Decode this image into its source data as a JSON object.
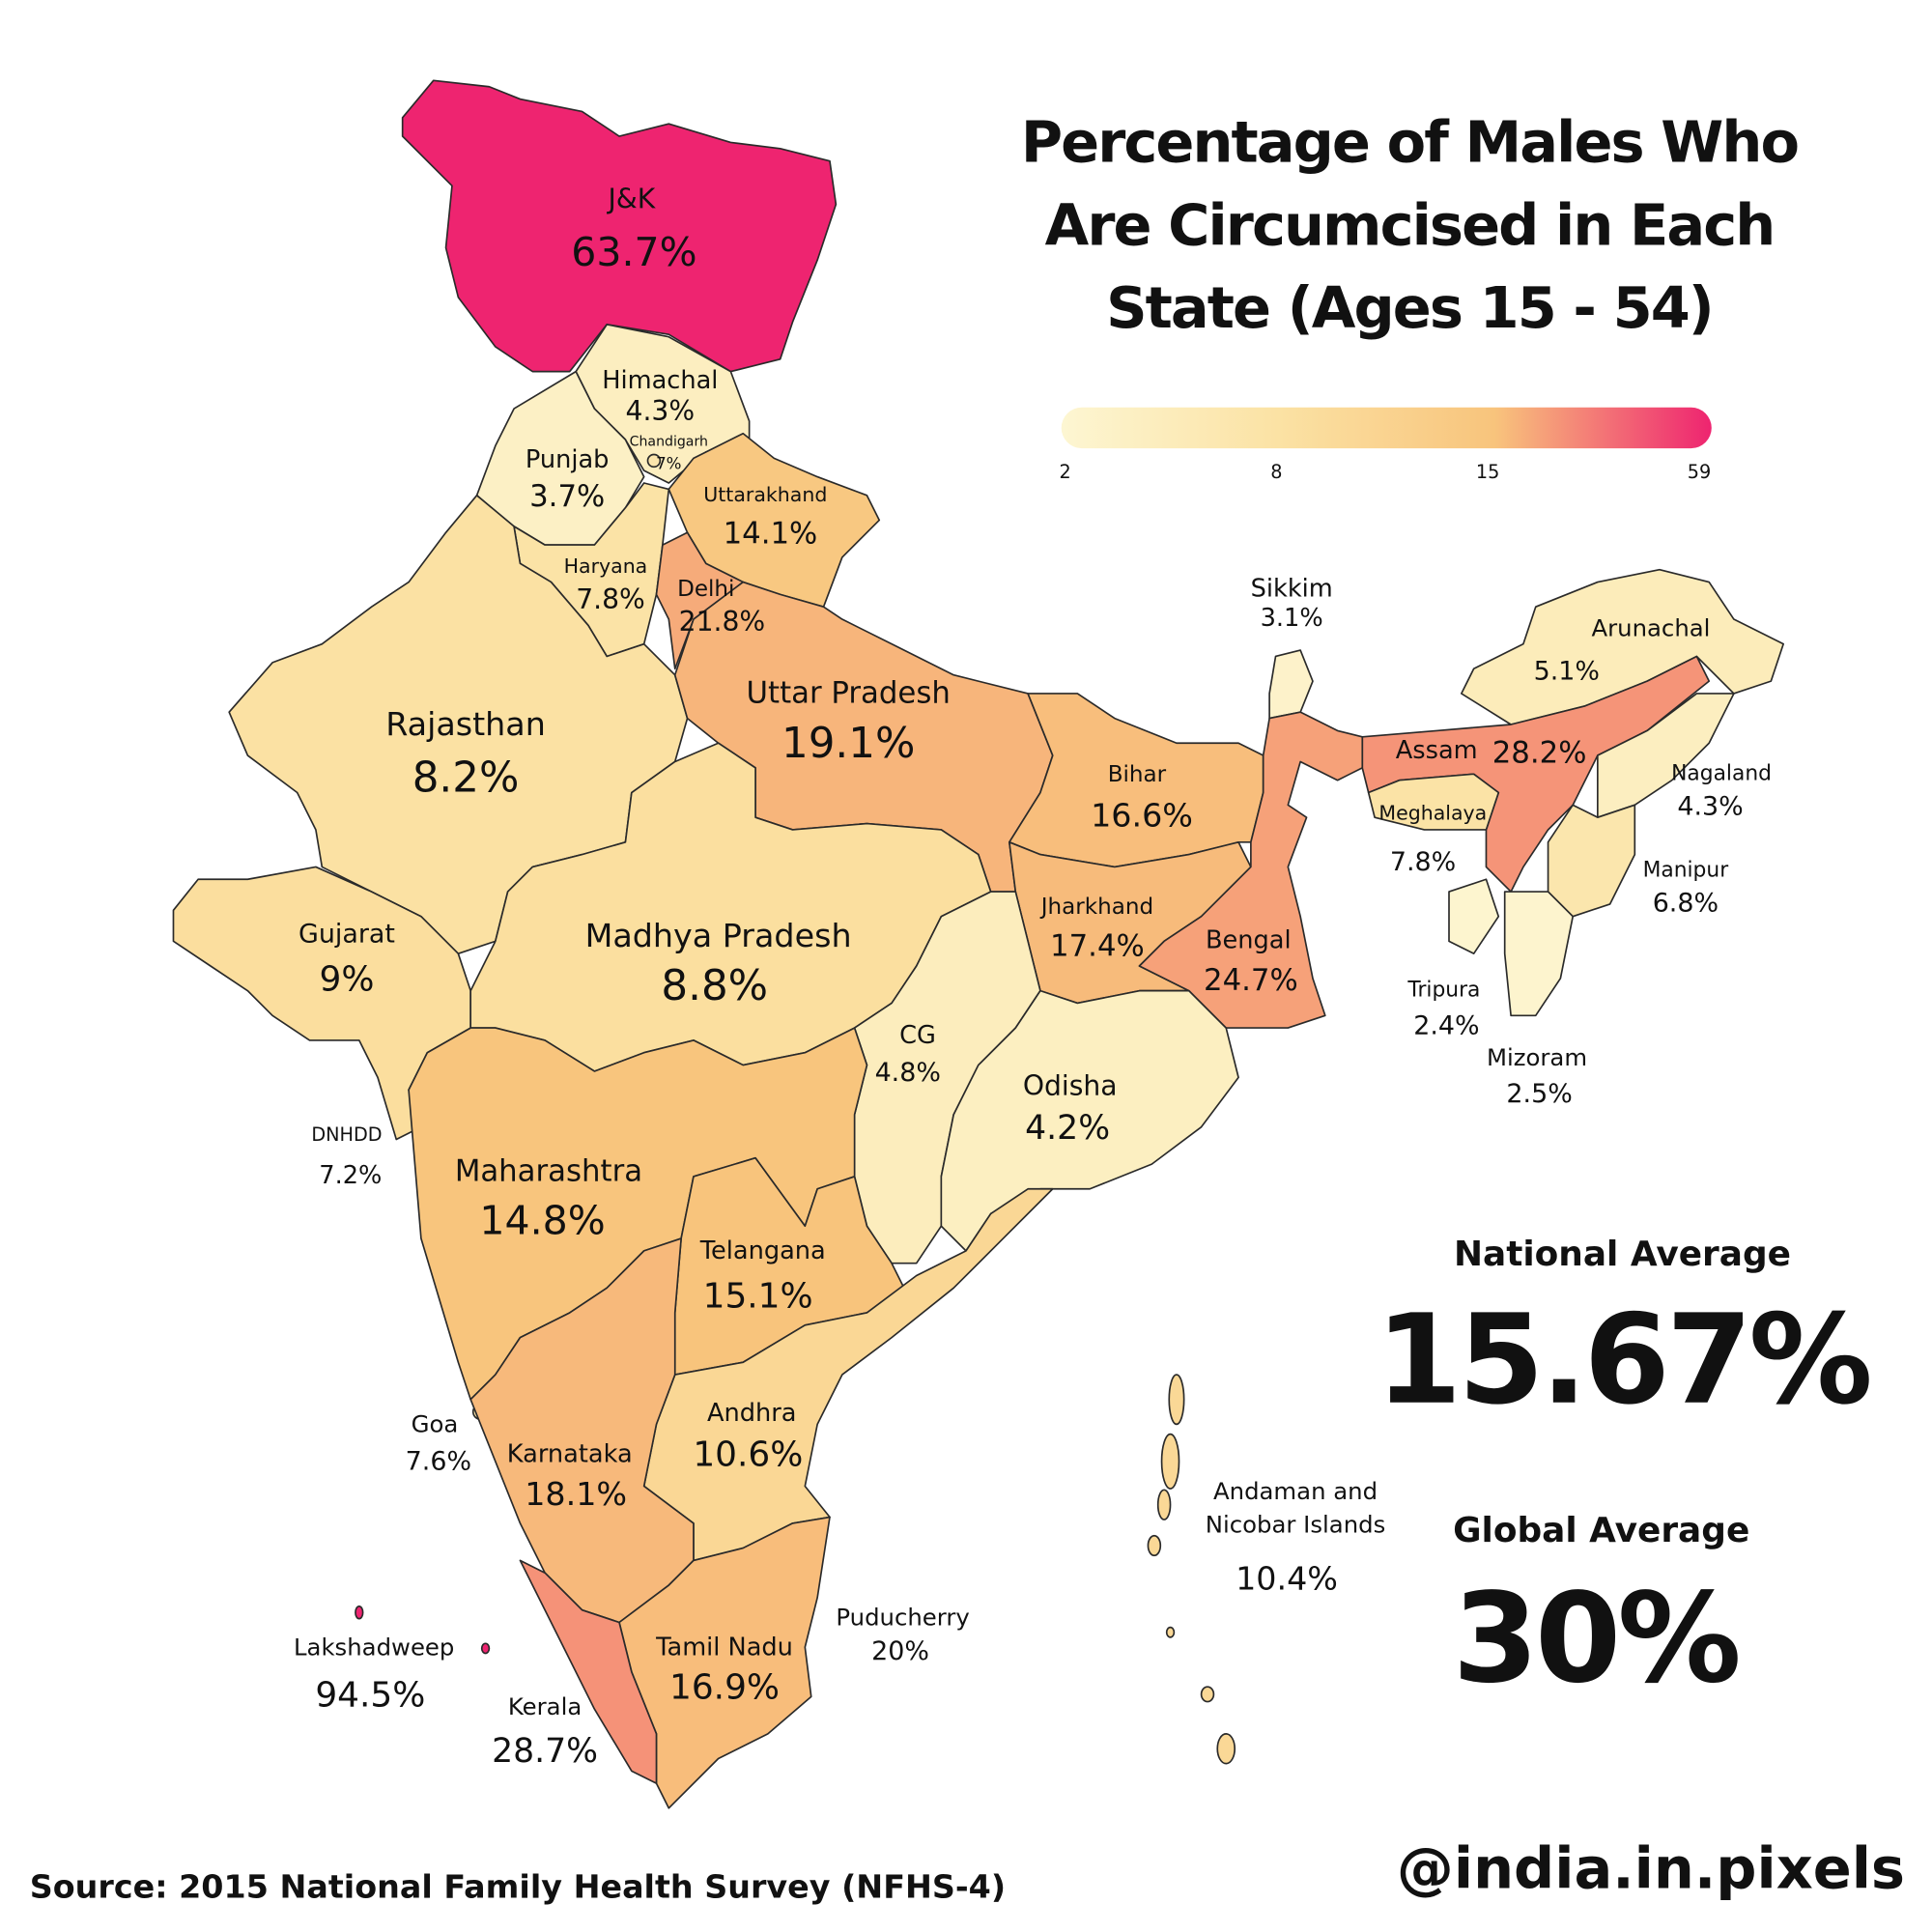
{
  "title": [
    "Percentage of Males Who",
    "Are Circumcised in Each",
    "State (Ages 15 - 54)"
  ],
  "legend": {
    "ticks": [
      2,
      8,
      15,
      59
    ],
    "colors": [
      "#fdf6d2",
      "#fbe2a4",
      "#f8c47c",
      "#ee2470"
    ]
  },
  "regions": [
    {
      "name": "J&K",
      "value": 63.7,
      "value_label": "63.7%"
    },
    {
      "name": "Himachal",
      "value": 4.3,
      "value_label": "4.3%"
    },
    {
      "name": "Chandigarh",
      "value": 7,
      "value_label": "7%"
    },
    {
      "name": "Punjab",
      "value": 3.7,
      "value_label": "3.7%"
    },
    {
      "name": "Uttarakhand",
      "value": 14.1,
      "value_label": "14.1%"
    },
    {
      "name": "Haryana",
      "value": 7.8,
      "value_label": "7.8%"
    },
    {
      "name": "Delhi",
      "value": 21.8,
      "value_label": "21.8%"
    },
    {
      "name": "Rajasthan",
      "value": 8.2,
      "value_label": "8.2%"
    },
    {
      "name": "Uttar Pradesh",
      "value": 19.1,
      "value_label": "19.1%"
    },
    {
      "name": "Bihar",
      "value": 16.6,
      "value_label": "16.6%"
    },
    {
      "name": "Sikkim",
      "value": 3.1,
      "value_label": "3.1%"
    },
    {
      "name": "Arunachal",
      "value": 5.1,
      "value_label": "5.1%"
    },
    {
      "name": "Assam",
      "value": 28.2,
      "value_label": "28.2%"
    },
    {
      "name": "Nagaland",
      "value": 4.3,
      "value_label": "4.3%"
    },
    {
      "name": "Meghalaya",
      "value": 7.8,
      "value_label": "7.8%"
    },
    {
      "name": "Manipur",
      "value": 6.8,
      "value_label": "6.8%"
    },
    {
      "name": "Gujarat",
      "value": 9,
      "value_label": "9%"
    },
    {
      "name": "Madhya Pradesh",
      "value": 8.8,
      "value_label": "8.8%"
    },
    {
      "name": "Jharkhand",
      "value": 17.4,
      "value_label": "17.4%"
    },
    {
      "name": "Bengal",
      "value": 24.7,
      "value_label": "24.7%"
    },
    {
      "name": "Tripura",
      "value": 2.4,
      "value_label": "2.4%"
    },
    {
      "name": "Mizoram",
      "value": 2.5,
      "value_label": "2.5%"
    },
    {
      "name": "CG",
      "value": 4.8,
      "value_label": "4.8%"
    },
    {
      "name": "Odisha",
      "value": 4.2,
      "value_label": "4.2%"
    },
    {
      "name": "DNHDD",
      "value": 7.2,
      "value_label": "7.2%"
    },
    {
      "name": "Maharashtra",
      "value": 14.8,
      "value_label": "14.8%"
    },
    {
      "name": "Telangana",
      "value": 15.1,
      "value_label": "15.1%"
    },
    {
      "name": "Goa",
      "value": 7.6,
      "value_label": "7.6%"
    },
    {
      "name": "Andhra",
      "value": 10.6,
      "value_label": "10.6%"
    },
    {
      "name": "Karnataka",
      "value": 18.1,
      "value_label": "18.1%"
    },
    {
      "name": [
        "Andaman and",
        "Nicobar Islands"
      ],
      "value": 10.4,
      "value_label": "10.4%"
    },
    {
      "name": "Puducherry",
      "value": 20,
      "value_label": "20%"
    },
    {
      "name": "Lakshadweep",
      "value": 94.5,
      "value_label": "94.5%"
    },
    {
      "name": "Tamil Nadu",
      "value": 16.9,
      "value_label": "16.9%"
    },
    {
      "name": "Kerala",
      "value": 28.7,
      "value_label": "28.7%"
    }
  ],
  "national_average": {
    "label": "National Average",
    "value": "15.67%"
  },
  "global_average": {
    "label": "Global Average",
    "value": "30%"
  },
  "source": "Source:  2015 National Family Health Survey (NFHS-4)",
  "credit": "@india.in.pixels"
}
